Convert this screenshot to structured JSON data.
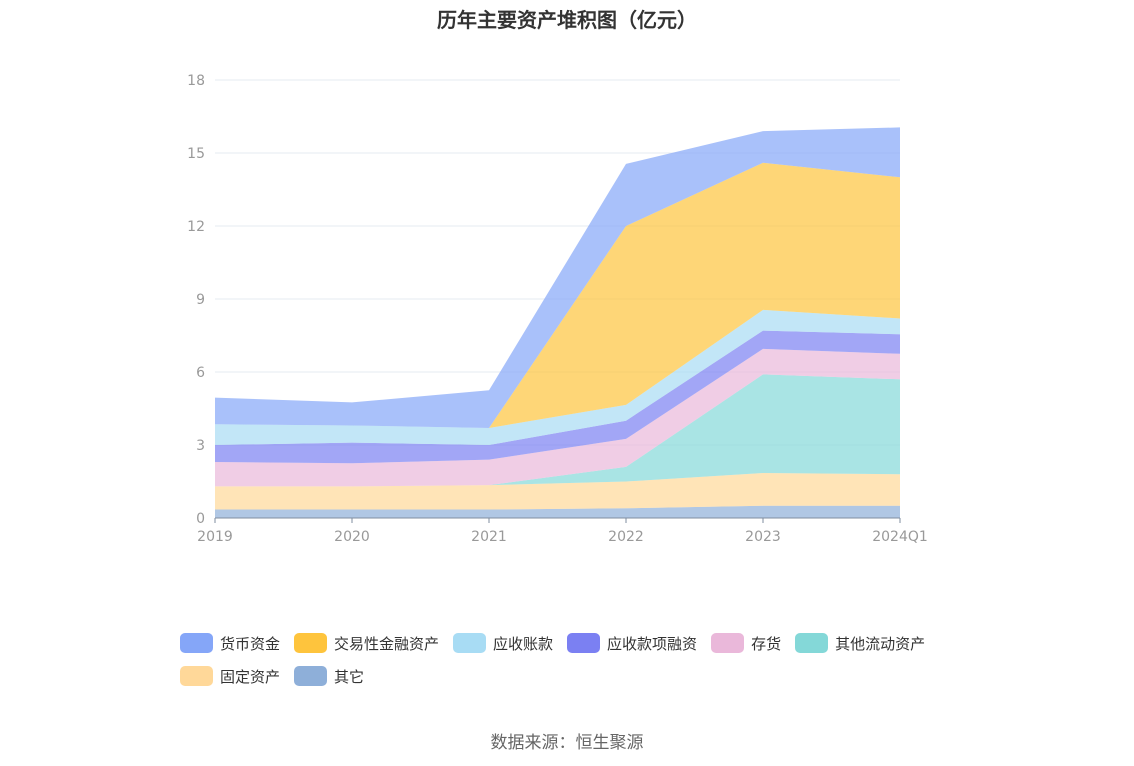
{
  "chart_data": {
    "type": "area",
    "stacked": true,
    "title": "历年主要资产堆积图（亿元）",
    "categories": [
      "2019",
      "2020",
      "2021",
      "2022",
      "2023",
      "2024Q1"
    ],
    "ylim": [
      0,
      18
    ],
    "yticks": [
      0,
      3,
      6,
      9,
      12,
      15,
      18
    ],
    "grid": true,
    "legend_position": "bottom",
    "series": [
      {
        "name": "其它",
        "color": "#8eafd9",
        "values": [
          0.35,
          0.35,
          0.35,
          0.4,
          0.5,
          0.5
        ]
      },
      {
        "name": "固定资产",
        "color": "#ffd899",
        "values": [
          0.95,
          0.95,
          1.0,
          1.1,
          1.35,
          1.3
        ]
      },
      {
        "name": "其他流动资产",
        "color": "#84d8d8",
        "values": [
          0.0,
          0.0,
          0.0,
          0.6,
          4.05,
          3.9
        ]
      },
      {
        "name": "存货",
        "color": "#eab8da",
        "values": [
          1.0,
          0.95,
          1.05,
          1.15,
          1.05,
          1.05
        ]
      },
      {
        "name": "应收款项融资",
        "color": "#7b80f2",
        "values": [
          0.7,
          0.85,
          0.6,
          0.75,
          0.75,
          0.8
        ]
      },
      {
        "name": "应收账款",
        "color": "#a8dcf4",
        "values": [
          0.85,
          0.7,
          0.7,
          0.65,
          0.85,
          0.65
        ]
      },
      {
        "name": "交易性金融资产",
        "color": "#fec43d",
        "values": [
          0.0,
          0.0,
          0.0,
          7.35,
          6.05,
          5.8
        ]
      },
      {
        "name": "货币资金",
        "color": "#85a6f8",
        "values": [
          1.1,
          0.95,
          1.55,
          2.55,
          1.3,
          2.05
        ]
      }
    ]
  },
  "legend": {
    "items": [
      {
        "label": "货币资金",
        "color": "#85a6f8"
      },
      {
        "label": "交易性金融资产",
        "color": "#fec43d"
      },
      {
        "label": "应收账款",
        "color": "#a8dcf4"
      },
      {
        "label": "应收款项融资",
        "color": "#7b80f2"
      },
      {
        "label": "存货",
        "color": "#eab8da"
      },
      {
        "label": "其他流动资产",
        "color": "#84d8d8"
      },
      {
        "label": "固定资产",
        "color": "#ffd899"
      },
      {
        "label": "其它",
        "color": "#8eafd9"
      }
    ]
  },
  "source_note": "数据来源：恒生聚源"
}
